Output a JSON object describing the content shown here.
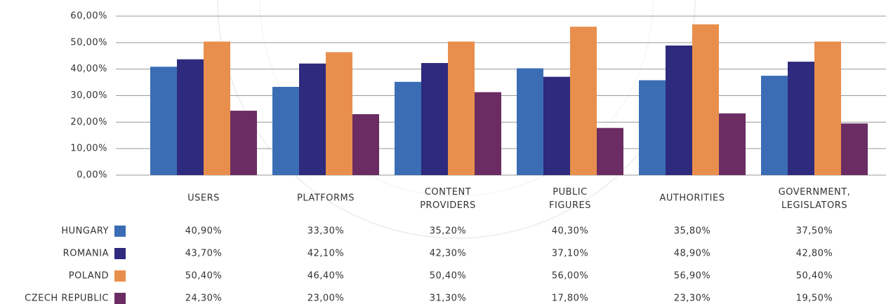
{
  "chart_data": {
    "type": "bar",
    "categories": [
      "USERS",
      "PLATFORMS",
      "CONTENT PROVIDERS",
      "PUBLIC FIGURES",
      "AUTHORITIES",
      "GOVERNMENT, LEGISLATORS"
    ],
    "series": [
      {
        "name": "HUNGARY",
        "color": "#3b6db5",
        "values": [
          40.9,
          33.3,
          35.2,
          40.3,
          35.8,
          37.5
        ],
        "value_labels": [
          "40,90%",
          "33,30%",
          "35,20%",
          "40,30%",
          "35,80%",
          "37,50%"
        ]
      },
      {
        "name": "ROMANIA",
        "color": "#2e2a7d",
        "values": [
          43.7,
          42.1,
          42.3,
          37.1,
          48.9,
          42.8
        ],
        "value_labels": [
          "43,70%",
          "42,10%",
          "42,30%",
          "37,10%",
          "48,90%",
          "42,80%"
        ]
      },
      {
        "name": "POLAND",
        "color": "#e98f4d",
        "values": [
          50.4,
          46.4,
          50.4,
          56.0,
          56.9,
          50.4
        ],
        "value_labels": [
          "50,40%",
          "46,40%",
          "50,40%",
          "56,00%",
          "56,90%",
          "50,40%"
        ]
      },
      {
        "name": "CZECH REPUBLIC",
        "color": "#6a2c62",
        "values": [
          24.3,
          23.0,
          31.3,
          17.8,
          23.3,
          19.5
        ],
        "value_labels": [
          "24,30%",
          "23,00%",
          "31,30%",
          "17,80%",
          "23,30%",
          "19,50%"
        ]
      }
    ],
    "ylim": [
      0,
      60
    ],
    "yticks": [
      {
        "value": 0,
        "label": "0,00%"
      },
      {
        "value": 10,
        "label": "10,00%"
      },
      {
        "value": 20,
        "label": "20,00%"
      },
      {
        "value": 30,
        "label": "30,00%"
      },
      {
        "value": 40,
        "label": "40,00%"
      },
      {
        "value": 50,
        "label": "50,00%"
      },
      {
        "value": 60,
        "label": "60,00%"
      }
    ],
    "grid": true
  }
}
